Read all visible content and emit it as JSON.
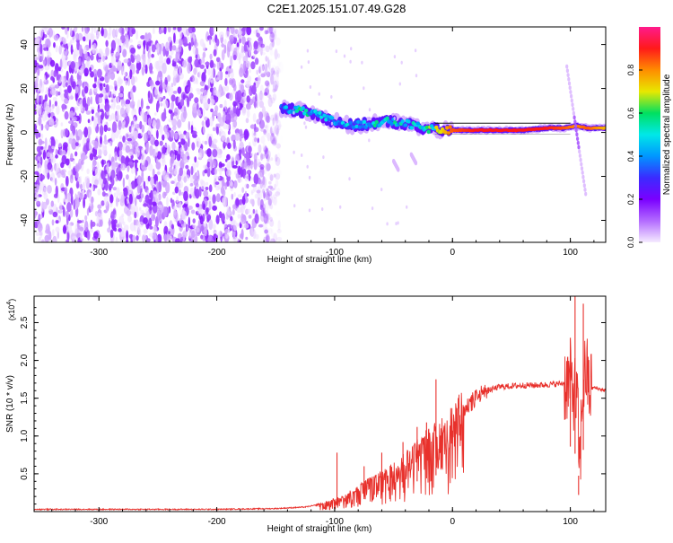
{
  "title": "C2E1.2025.151.07.49.G28",
  "colors": {
    "snr_line": "#e8302b",
    "colormap": [
      "#f5ebff",
      "#b36bff",
      "#7a00ff",
      "#3b2bff",
      "#0096ff",
      "#00e8e8",
      "#00e060",
      "#e8e800",
      "#ff8c00",
      "#ff1a1a",
      "#ff1a8c"
    ]
  },
  "chart_data": [
    {
      "type": "heatmap",
      "name": "spectrogram",
      "xlabel": "Height of straight line (km)",
      "ylabel": "Frequency (Hz)",
      "xlim": [
        -355,
        130
      ],
      "ylim": [
        -50,
        48
      ],
      "x_ticks": [
        -300,
        -200,
        -100,
        0,
        100
      ],
      "y_ticks": [
        -40,
        -20,
        0,
        20,
        40
      ],
      "x_tick_labels": [
        "-300",
        "-200",
        "-100",
        "0",
        "100"
      ],
      "y_tick_labels": [
        "-40",
        "-20",
        "0",
        "20",
        "40"
      ],
      "colorbar": {
        "label": "Normalized spectral amplitude",
        "range": [
          0,
          1
        ],
        "ticks": [
          0.0,
          0.2,
          0.4,
          0.6,
          0.8
        ],
        "tick_labels": [
          "0.0",
          "0.2",
          "0.4",
          "0.6",
          "0.8"
        ]
      },
      "noise_region_x": [
        -355,
        -145
      ],
      "signal_track": [
        {
          "x": -145,
          "f": 11,
          "amp": 0.35
        },
        {
          "x": -130,
          "f": 10,
          "amp": 0.55
        },
        {
          "x": -115,
          "f": 8,
          "amp": 0.45
        },
        {
          "x": -100,
          "f": 5,
          "amp": 0.4
        },
        {
          "x": -85,
          "f": 3,
          "amp": 0.45
        },
        {
          "x": -70,
          "f": 4,
          "amp": 0.5
        },
        {
          "x": -55,
          "f": 5,
          "amp": 0.5
        },
        {
          "x": -40,
          "f": 4,
          "amp": 0.45
        },
        {
          "x": -25,
          "f": 2,
          "amp": 0.55
        },
        {
          "x": -10,
          "f": 1,
          "amp": 0.7
        },
        {
          "x": 0,
          "f": 1,
          "amp": 0.85
        },
        {
          "x": 20,
          "f": 1,
          "amp": 0.9
        },
        {
          "x": 40,
          "f": 1,
          "amp": 0.9
        },
        {
          "x": 60,
          "f": 1,
          "amp": 0.9
        },
        {
          "x": 80,
          "f": 2,
          "amp": 0.9
        },
        {
          "x": 95,
          "f": 2,
          "amp": 0.85
        },
        {
          "x": 105,
          "f": 3,
          "amp": 0.8
        },
        {
          "x": 115,
          "f": 2,
          "amp": 0.85
        },
        {
          "x": 130,
          "f": 2,
          "amp": 0.75
        }
      ],
      "side_streaks": [
        {
          "x1": 97,
          "f1": 30,
          "x2": 113,
          "f2": -28
        },
        {
          "x1": -50,
          "f1": -13,
          "x2": -46,
          "f2": -17
        },
        {
          "x1": -35,
          "f1": -10,
          "x2": -31,
          "f2": -14
        }
      ]
    },
    {
      "type": "line",
      "name": "snr",
      "xlabel": "Height of straight line (km)",
      "ylabel": "SNR (10 * v/v)",
      "scale_note": "(x10",
      "scale_exp": "4",
      "scale_close": ")",
      "xlim": [
        -355,
        130
      ],
      "ylim": [
        0,
        2.85
      ],
      "x_ticks": [
        -300,
        -200,
        -100,
        0,
        100
      ],
      "y_ticks": [
        0.5,
        1.0,
        1.5,
        2.0,
        2.5
      ],
      "x_tick_labels": [
        "-300",
        "-200",
        "-100",
        "0",
        "100"
      ],
      "y_tick_labels": [
        "0.5",
        "1.0",
        "1.5",
        "2.0",
        "2.5"
      ],
      "series": [
        {
          "color": "#e8302b",
          "x": [
            -355,
            -300,
            -250,
            -200,
            -150,
            -125,
            -110,
            -100,
            -90,
            -80,
            -70,
            -60,
            -50,
            -40,
            -30,
            -20,
            -10,
            0,
            10,
            20,
            30,
            40,
            50,
            60,
            70,
            80,
            90,
            95,
            100,
            103,
            106,
            108,
            110,
            113,
            116,
            120,
            125,
            130
          ],
          "y": [
            0.03,
            0.03,
            0.03,
            0.03,
            0.04,
            0.06,
            0.1,
            0.15,
            0.2,
            0.28,
            0.38,
            0.45,
            0.55,
            0.65,
            0.8,
            0.9,
            1.0,
            1.15,
            1.35,
            1.5,
            1.6,
            1.65,
            1.66,
            1.67,
            1.67,
            1.68,
            1.69,
            1.7,
            1.72,
            1.6,
            1.4,
            0.5,
            1.5,
            1.9,
            1.62,
            1.64,
            1.62,
            1.6
          ],
          "spikes": [
            {
              "x": -98,
              "y": 0.78
            },
            {
              "x": -75,
              "y": 0.6
            },
            {
              "x": -60,
              "y": 0.78
            },
            {
              "x": -42,
              "y": 0.92
            },
            {
              "x": -30,
              "y": 1.12
            },
            {
              "x": -22,
              "y": 1.18
            },
            {
              "x": -14,
              "y": 1.75
            },
            {
              "x": 100,
              "y": 2.3
            },
            {
              "x": 104,
              "y": 2.88
            },
            {
              "x": 107,
              "y": 0.22
            },
            {
              "x": 111,
              "y": 2.75
            }
          ]
        }
      ]
    }
  ]
}
